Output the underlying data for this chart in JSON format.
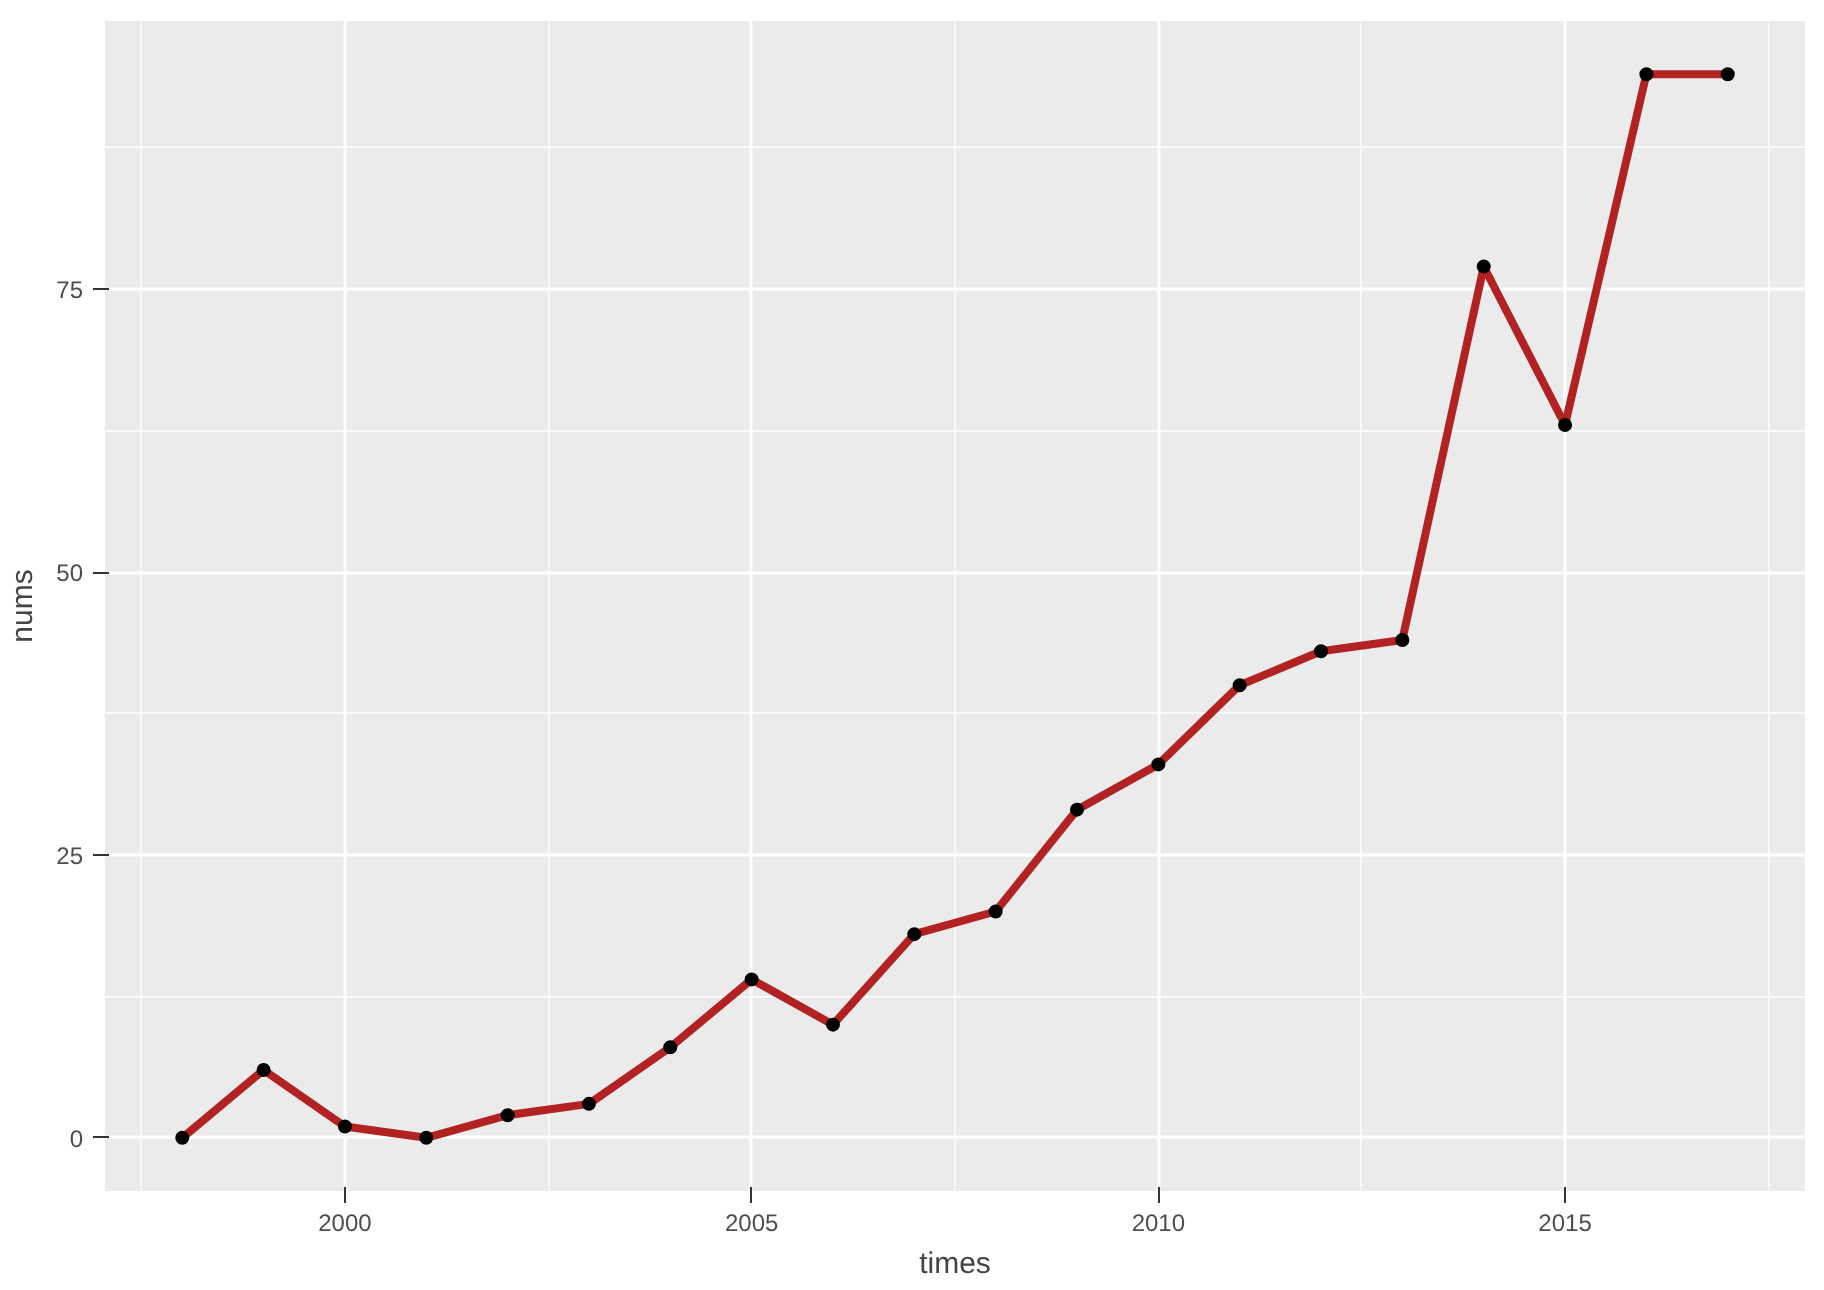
{
  "chart_data": {
    "type": "line",
    "xlabel": "times",
    "ylabel": "nums",
    "x": [
      1998,
      1999,
      2000,
      2001,
      2002,
      2003,
      2004,
      2005,
      2006,
      2007,
      2008,
      2009,
      2010,
      2011,
      2012,
      2013,
      2014,
      2015,
      2016,
      2017
    ],
    "series": [
      {
        "color": "#b22222",
        "values": [
          0,
          6,
          1,
          0,
          2,
          3,
          8,
          14,
          10,
          18,
          20,
          29,
          33,
          40,
          43,
          44,
          77,
          63,
          94,
          94
        ]
      }
    ],
    "xlim": [
      1997.05,
      2017.95
    ],
    "ylim": [
      -4.7,
      98.7
    ],
    "xticks": [
      2000,
      2005,
      2010,
      2015
    ],
    "yticks": [
      0,
      25,
      50,
      75
    ],
    "grid": true,
    "marker": "circle",
    "line_style": "solid"
  }
}
